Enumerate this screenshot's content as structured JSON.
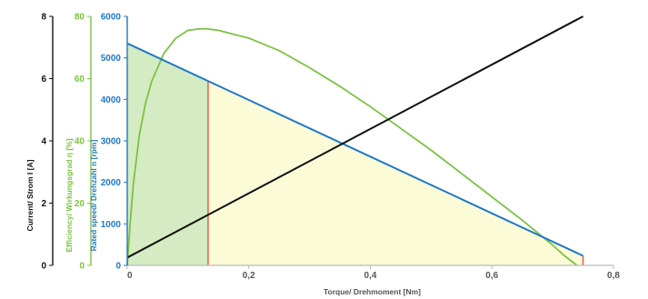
{
  "chart_data": {
    "type": "line",
    "xlabel": "Torque/ Drehmoment [Nm]",
    "xlim": [
      0,
      0.8
    ],
    "x_ticks": [
      {
        "value": 0,
        "label": "0"
      },
      {
        "value": 0.2,
        "label": "0,2"
      },
      {
        "value": 0.4,
        "label": "0,4"
      },
      {
        "value": 0.6,
        "label": "0,6"
      },
      {
        "value": 0.8,
        "label": "0,8"
      }
    ],
    "y_axes": [
      {
        "id": "current",
        "label": "Current/ Strom I [A]",
        "color": "#111111",
        "lim": [
          0,
          8
        ],
        "ticks": [
          "0",
          "2",
          "4",
          "6",
          "8"
        ]
      },
      {
        "id": "efficiency",
        "label": "Efficiency/ Wirkungsgrad η [%]",
        "color": "#7dc243",
        "lim": [
          0,
          80
        ],
        "ticks": [
          "0",
          "20",
          "40",
          "60",
          "80"
        ]
      },
      {
        "id": "speed",
        "label": "Rated speed/ Drehzahl n [rpm]",
        "color": "#1f78c8",
        "lim": [
          0,
          6000
        ],
        "ticks": [
          "0",
          "1000",
          "2000",
          "3000",
          "4000",
          "5000",
          "6000"
        ]
      }
    ],
    "series": [
      {
        "axis": "speed",
        "color": "#1f78c8",
        "x": [
          0,
          0.75
        ],
        "y": [
          5350,
          230
        ]
      },
      {
        "axis": "current",
        "color": "#111111",
        "x": [
          0,
          0.75
        ],
        "y": [
          0.25,
          8.0
        ]
      },
      {
        "axis": "efficiency",
        "color": "#7dc243",
        "x": [
          0,
          0.005,
          0.01,
          0.02,
          0.03,
          0.04,
          0.06,
          0.08,
          0.1,
          0.12,
          0.13,
          0.15,
          0.2,
          0.25,
          0.3,
          0.35,
          0.4,
          0.45,
          0.5,
          0.55,
          0.6,
          0.65,
          0.7,
          0.72,
          0.74
        ],
        "y": [
          0,
          14,
          26,
          42,
          52,
          59,
          68,
          73,
          75.5,
          76,
          76,
          75.5,
          73,
          69,
          63.5,
          57.5,
          51,
          44,
          37,
          29.5,
          22,
          14.5,
          6.5,
          3,
          0
        ]
      }
    ],
    "rated_torque": 0.133,
    "shading": [
      {
        "from": 0,
        "to": 0.133,
        "color": "#d4ebc3"
      },
      {
        "from": 0.133,
        "to": 0.75,
        "color": "#fbfbd7"
      }
    ],
    "marker_color": "#e8664a",
    "grid": false
  }
}
